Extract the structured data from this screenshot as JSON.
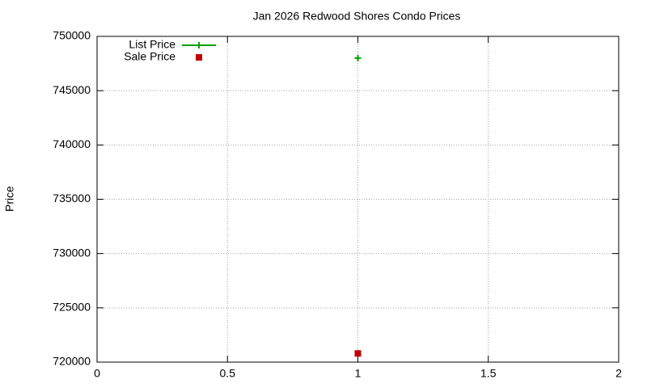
{
  "chart_data": {
    "type": "scatter",
    "title": "Jan 2026 Redwood Shores Condo Prices",
    "y_label": "Price",
    "x": [
      1
    ],
    "series": [
      {
        "name": "List Price",
        "color": "#00a000",
        "marker": "plus",
        "values": [
          748000
        ]
      },
      {
        "name": "Sale Price",
        "color": "#c00000",
        "marker": "square",
        "values": [
          720800
        ]
      }
    ],
    "xlim": [
      0,
      2
    ],
    "xticks": [
      0,
      0.5,
      1,
      1.5,
      2
    ],
    "ylim": [
      720000,
      750000
    ],
    "yticks": [
      720000,
      725000,
      730000,
      735000,
      740000,
      745000,
      750000
    ],
    "grid": true,
    "legend": "top-left"
  }
}
